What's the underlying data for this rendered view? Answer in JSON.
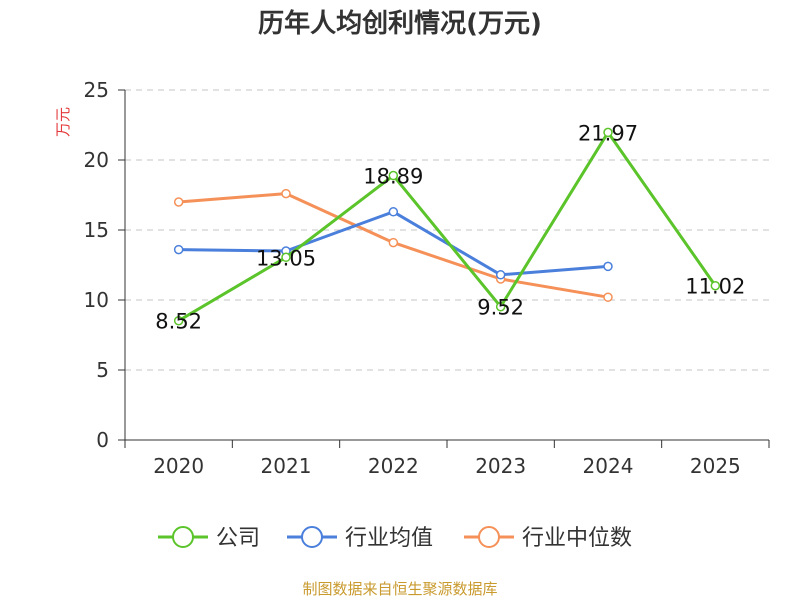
{
  "chart_data": {
    "type": "line",
    "title": "历年人均创利情况(万元)",
    "ylabel": "万元",
    "xlabel": "",
    "categories": [
      "2020",
      "2021",
      "2022",
      "2023",
      "2024",
      "2025"
    ],
    "ylim": [
      0,
      25
    ],
    "yticks": [
      0,
      5,
      10,
      15,
      20,
      25
    ],
    "grid": "horizontal-dashed",
    "legend_position": "bottom",
    "series": [
      {
        "name": "公司",
        "color": "#5bc42a",
        "values": [
          8.52,
          13.05,
          18.89,
          9.52,
          21.97,
          11.02
        ],
        "labels": [
          "8.52",
          "13.05",
          "18.89",
          "9.52",
          "21.97",
          "11.02"
        ]
      },
      {
        "name": "行业均值",
        "color": "#4a7fdc",
        "values": [
          13.6,
          13.5,
          16.3,
          11.8,
          12.4,
          null
        ]
      },
      {
        "name": "行业中位数",
        "color": "#f59158",
        "values": [
          17.0,
          17.6,
          14.1,
          11.5,
          10.2,
          null
        ]
      }
    ],
    "source": "制图数据来自恒生聚源数据库"
  }
}
